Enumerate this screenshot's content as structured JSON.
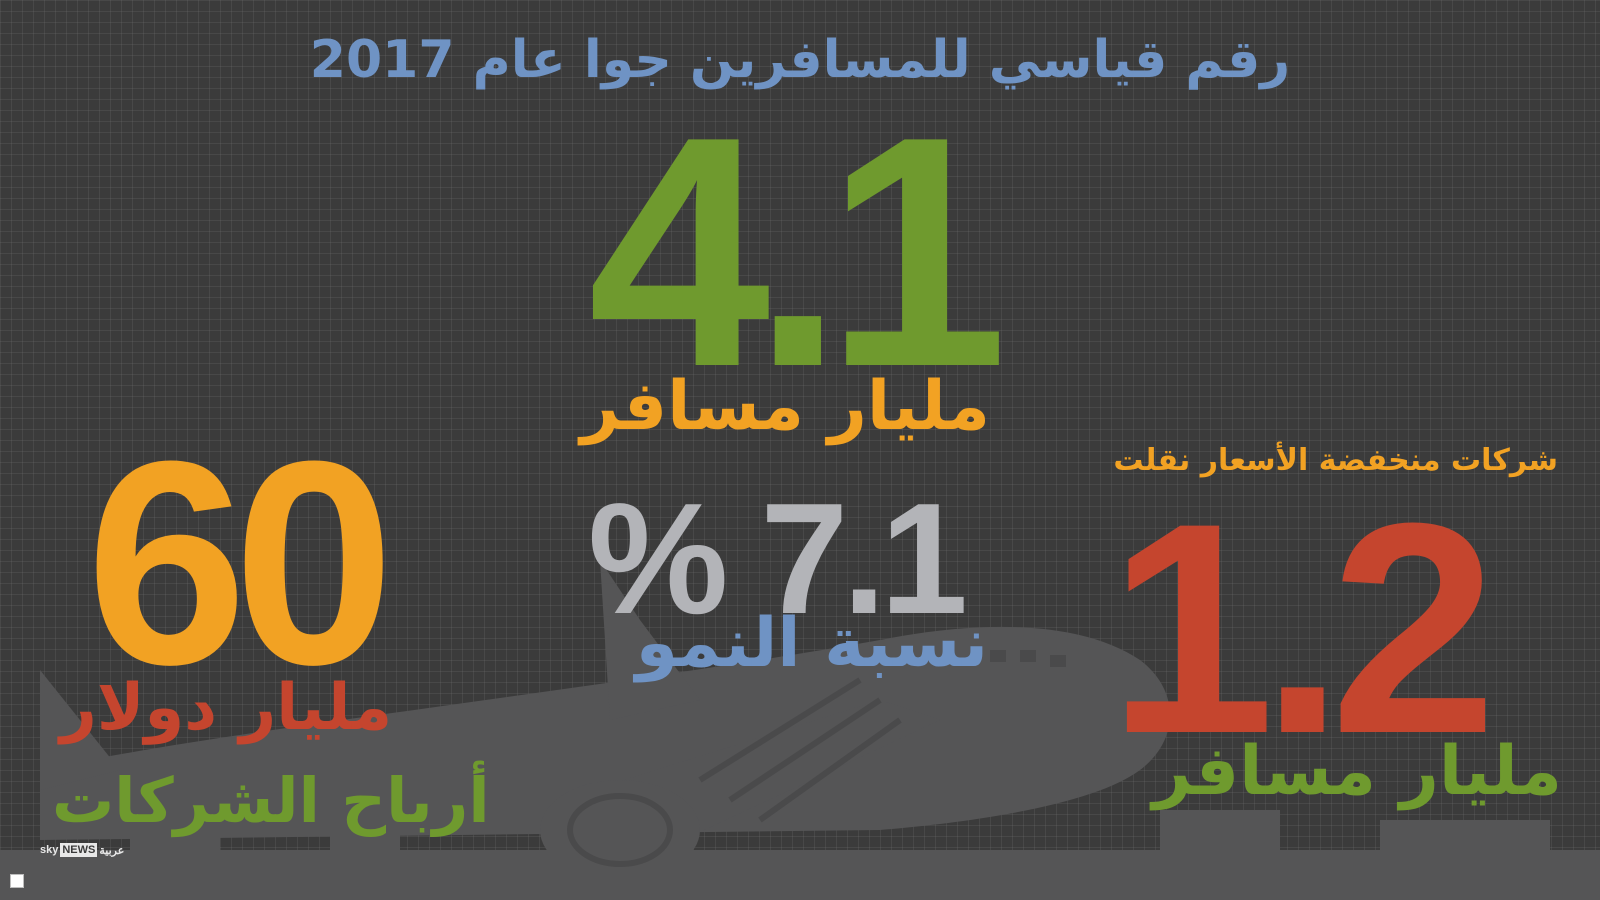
{
  "title": "رقم قياسي للمسافرين جوا عام 2017",
  "passengers": {
    "value": "4.1",
    "unit": "مليار مسافر"
  },
  "growth": {
    "value": "% 7.1",
    "label": "نسبة النمو"
  },
  "profits": {
    "value": "60",
    "unit": "مليار دولار",
    "label": "أرباح الشركات"
  },
  "low_cost": {
    "caption": "شركات منخفضة الأسعار نقلت",
    "value": "1.2",
    "unit": "مليار مسافر"
  },
  "logo": {
    "sky": "sky",
    "news": "NEWS",
    "arabic": "عربية"
  },
  "colors": {
    "green": "#6f9a2e",
    "orange": "#f2a223",
    "red": "#c5452e",
    "blue": "#6f93c4",
    "gray": "#b3b4b8"
  }
}
